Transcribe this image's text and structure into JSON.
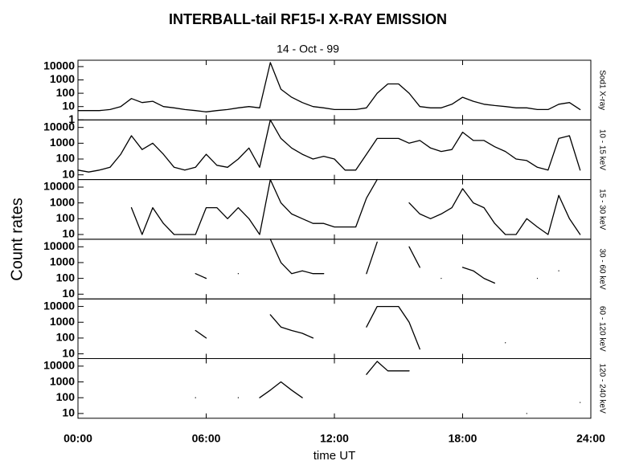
{
  "title": "INTERBALL-tail  RF15-I   X-RAY  EMISSION",
  "subtitle": "14 - Oct - 99",
  "ylabel": "Count  rates",
  "xlabel": "time UT",
  "chart_data": [
    {
      "type": "line",
      "log_scale": true,
      "xlim": [
        0,
        24
      ],
      "ylim": [
        1,
        30000
      ],
      "yticks": [
        1,
        10,
        100,
        1000,
        10000
      ],
      "x": [
        0,
        0.5,
        1,
        1.5,
        2,
        2.5,
        3,
        3.5,
        4,
        4.5,
        5,
        5.5,
        6,
        6.5,
        7,
        7.5,
        8,
        8.5,
        9,
        9.5,
        10,
        10.5,
        11,
        11.5,
        12,
        12.5,
        13,
        13.5,
        14,
        14.5,
        15,
        15.5,
        16,
        16.5,
        17,
        17.5,
        18,
        18.5,
        19,
        19.5,
        20,
        20.5,
        21,
        21.5,
        22,
        22.5,
        23,
        23.5,
        24
      ],
      "series": [
        {
          "name": "Sod1  X-ray",
          "color": "#000000",
          "values": [
            5,
            5,
            5,
            6,
            10,
            40,
            20,
            25,
            10,
            8,
            6,
            5,
            4,
            5,
            6,
            8,
            10,
            8,
            20000,
            200,
            50,
            20,
            10,
            8,
            6,
            6,
            6,
            8,
            100,
            500,
            500,
            100,
            10,
            8,
            8,
            15,
            50,
            25,
            15,
            12,
            10,
            8,
            8,
            6,
            6,
            15,
            20,
            6,
            null
          ]
        }
      ]
    },
    {
      "type": "line",
      "log_scale": true,
      "xlim": [
        0,
        24
      ],
      "ylim": [
        5,
        30000
      ],
      "yticks": [
        10,
        100,
        1000,
        10000
      ],
      "x": [
        0,
        0.5,
        1,
        1.5,
        2,
        2.5,
        3,
        3.5,
        4,
        4.5,
        5,
        5.5,
        6,
        6.5,
        7,
        7.5,
        8,
        8.5,
        9,
        9.5,
        10,
        10.5,
        11,
        11.5,
        12,
        12.5,
        13,
        13.5,
        14,
        14.5,
        15,
        15.5,
        16,
        16.5,
        17,
        17.5,
        18,
        18.5,
        19,
        19.5,
        20,
        20.5,
        21,
        21.5,
        22,
        22.5,
        23,
        23.5,
        24
      ],
      "series": [
        {
          "name": "10 - 15 keV",
          "color": "#000000",
          "values": [
            20,
            15,
            20,
            30,
            200,
            3000,
            400,
            1000,
            200,
            30,
            20,
            30,
            200,
            40,
            30,
            100,
            500,
            30,
            30000,
            2000,
            500,
            200,
            100,
            150,
            100,
            20,
            20,
            200,
            2000,
            2000,
            2000,
            1000,
            1500,
            500,
            300,
            400,
            5000,
            1500,
            1500,
            600,
            300,
            100,
            80,
            30,
            20,
            2000,
            3000,
            20,
            null
          ]
        }
      ]
    },
    {
      "type": "line",
      "log_scale": true,
      "xlim": [
        0,
        24
      ],
      "ylim": [
        5,
        30000
      ],
      "yticks": [
        10,
        100,
        1000,
        10000
      ],
      "x": [
        0,
        0.5,
        1,
        1.5,
        2,
        2.5,
        3,
        3.5,
        4,
        4.5,
        5,
        5.5,
        6,
        6.5,
        7,
        7.5,
        8,
        8.5,
        9,
        9.5,
        10,
        10.5,
        11,
        11.5,
        12,
        12.5,
        13,
        13.5,
        14,
        14.5,
        15,
        15.5,
        16,
        16.5,
        17,
        17.5,
        18,
        18.5,
        19,
        19.5,
        20,
        20.5,
        21,
        21.5,
        22,
        22.5,
        23,
        23.5,
        24
      ],
      "series": [
        {
          "name": "15 - 30 keV",
          "color": "#000000",
          "values": [
            null,
            null,
            null,
            null,
            null,
            500,
            10,
            500,
            50,
            10,
            10,
            10,
            500,
            500,
            100,
            500,
            100,
            10,
            30000,
            1000,
            200,
            100,
            50,
            50,
            30,
            30,
            30,
            2000,
            30000,
            null,
            null,
            1000,
            200,
            100,
            200,
            500,
            8000,
            1000,
            500,
            50,
            10,
            10,
            100,
            30,
            10,
            3000,
            100,
            10,
            null
          ]
        }
      ]
    },
    {
      "type": "line",
      "log_scale": true,
      "xlim": [
        0,
        24
      ],
      "ylim": [
        5,
        30000
      ],
      "yticks": [
        10,
        100,
        1000,
        10000
      ],
      "x": [
        0,
        0.5,
        1,
        1.5,
        2,
        2.5,
        3,
        3.5,
        4,
        4.5,
        5,
        5.5,
        6,
        6.5,
        7,
        7.5,
        8,
        8.5,
        9,
        9.5,
        10,
        10.5,
        11,
        11.5,
        12,
        12.5,
        13,
        13.5,
        14,
        14.5,
        15,
        15.5,
        16,
        16.5,
        17,
        17.5,
        18,
        18.5,
        19,
        19.5,
        20,
        20.5,
        21,
        21.5,
        22,
        22.5,
        23,
        23.5,
        24
      ],
      "series": [
        {
          "name": "30 - 60 keV",
          "color": "#000000",
          "values": [
            null,
            null,
            null,
            null,
            null,
            null,
            null,
            null,
            null,
            null,
            null,
            200,
            100,
            null,
            null,
            200,
            null,
            null,
            30000,
            1000,
            200,
            300,
            200,
            200,
            null,
            null,
            null,
            200,
            20000,
            null,
            null,
            10000,
            500,
            null,
            100,
            null,
            500,
            300,
            100,
            50,
            null,
            null,
            null,
            100,
            null,
            300,
            null,
            null,
            null
          ]
        }
      ]
    },
    {
      "type": "line",
      "log_scale": true,
      "xlim": [
        0,
        24
      ],
      "ylim": [
        5,
        30000
      ],
      "yticks": [
        10,
        100,
        1000,
        10000
      ],
      "x": [
        0,
        0.5,
        1,
        1.5,
        2,
        2.5,
        3,
        3.5,
        4,
        4.5,
        5,
        5.5,
        6,
        6.5,
        7,
        7.5,
        8,
        8.5,
        9,
        9.5,
        10,
        10.5,
        11,
        11.5,
        12,
        12.5,
        13,
        13.5,
        14,
        14.5,
        15,
        15.5,
        16,
        16.5,
        17,
        17.5,
        18,
        18.5,
        19,
        19.5,
        20,
        20.5,
        21,
        21.5,
        22,
        22.5,
        23,
        23.5,
        24
      ],
      "series": [
        {
          "name": "60 - 120 keV",
          "color": "#000000",
          "values": [
            null,
            null,
            null,
            null,
            null,
            null,
            null,
            null,
            null,
            null,
            null,
            300,
            100,
            null,
            null,
            null,
            null,
            null,
            3000,
            500,
            300,
            200,
            100,
            null,
            null,
            null,
            null,
            500,
            10000,
            10000,
            10000,
            1000,
            20,
            null,
            null,
            null,
            null,
            null,
            null,
            null,
            50,
            null,
            null,
            null,
            null,
            null,
            null,
            null,
            null
          ]
        }
      ]
    },
    {
      "type": "line",
      "log_scale": true,
      "xlim": [
        0,
        24
      ],
      "ylim": [
        5,
        30000
      ],
      "yticks": [
        10,
        100,
        1000,
        10000
      ],
      "xticks": [
        {
          "value": 0,
          "label": "00:00"
        },
        {
          "value": 6,
          "label": "06:00"
        },
        {
          "value": 12,
          "label": "12:00"
        },
        {
          "value": 18,
          "label": "18:00"
        },
        {
          "value": 24,
          "label": "24:00"
        }
      ],
      "x": [
        0,
        0.5,
        1,
        1.5,
        2,
        2.5,
        3,
        3.5,
        4,
        4.5,
        5,
        5.5,
        6,
        6.5,
        7,
        7.5,
        8,
        8.5,
        9,
        9.5,
        10,
        10.5,
        11,
        11.5,
        12,
        12.5,
        13,
        13.5,
        14,
        14.5,
        15,
        15.5,
        16,
        16.5,
        17,
        17.5,
        18,
        18.5,
        19,
        19.5,
        20,
        20.5,
        21,
        21.5,
        22,
        22.5,
        23,
        23.5,
        24
      ],
      "series": [
        {
          "name": "120 - 240 keV",
          "color": "#000000",
          "values": [
            null,
            null,
            null,
            null,
            null,
            null,
            null,
            null,
            null,
            null,
            null,
            100,
            null,
            null,
            null,
            100,
            null,
            100,
            300,
            1000,
            300,
            100,
            null,
            null,
            null,
            null,
            null,
            3000,
            20000,
            5000,
            5000,
            5000,
            null,
            null,
            null,
            null,
            null,
            null,
            null,
            null,
            null,
            null,
            10,
            null,
            null,
            null,
            null,
            50,
            null
          ]
        }
      ]
    }
  ]
}
